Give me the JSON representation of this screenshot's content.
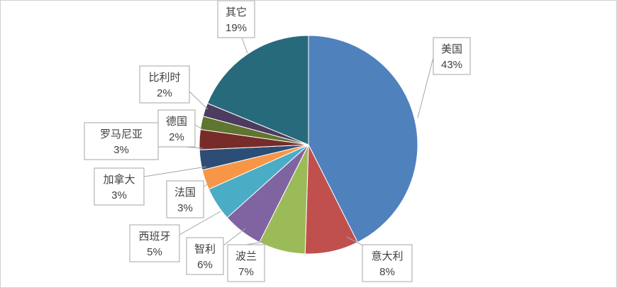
{
  "chart_data": {
    "type": "pie",
    "title": "",
    "slices": [
      {
        "name": "美国",
        "value": 43,
        "label": "43%",
        "color": "#4F81BD"
      },
      {
        "name": "意大利",
        "value": 8,
        "label": "8%",
        "color": "#C0504D"
      },
      {
        "name": "波兰",
        "value": 7,
        "label": "7%",
        "color": "#9BBB59"
      },
      {
        "name": "智利",
        "value": 6,
        "label": "6%",
        "color": "#8064A2"
      },
      {
        "name": "西班牙",
        "value": 5,
        "label": "5%",
        "color": "#4BACC6"
      },
      {
        "name": "法国",
        "value": 3,
        "label": "3%",
        "color": "#F79646"
      },
      {
        "name": "加拿大",
        "value": 3,
        "label": "3%",
        "color": "#2C4D75"
      },
      {
        "name": "罗马尼亚",
        "value": 3,
        "label": "3%",
        "color": "#772C2A"
      },
      {
        "name": "德国",
        "value": 2,
        "label": "2%",
        "color": "#5F7530"
      },
      {
        "name": "比利时",
        "value": 2,
        "label": "2%",
        "color": "#4D3B62"
      },
      {
        "name": "其它",
        "value": 19,
        "label": "19%",
        "color": "#276A7C"
      }
    ],
    "legend": "none",
    "start_angle": "12 o'clock",
    "direction": "clockwise"
  }
}
